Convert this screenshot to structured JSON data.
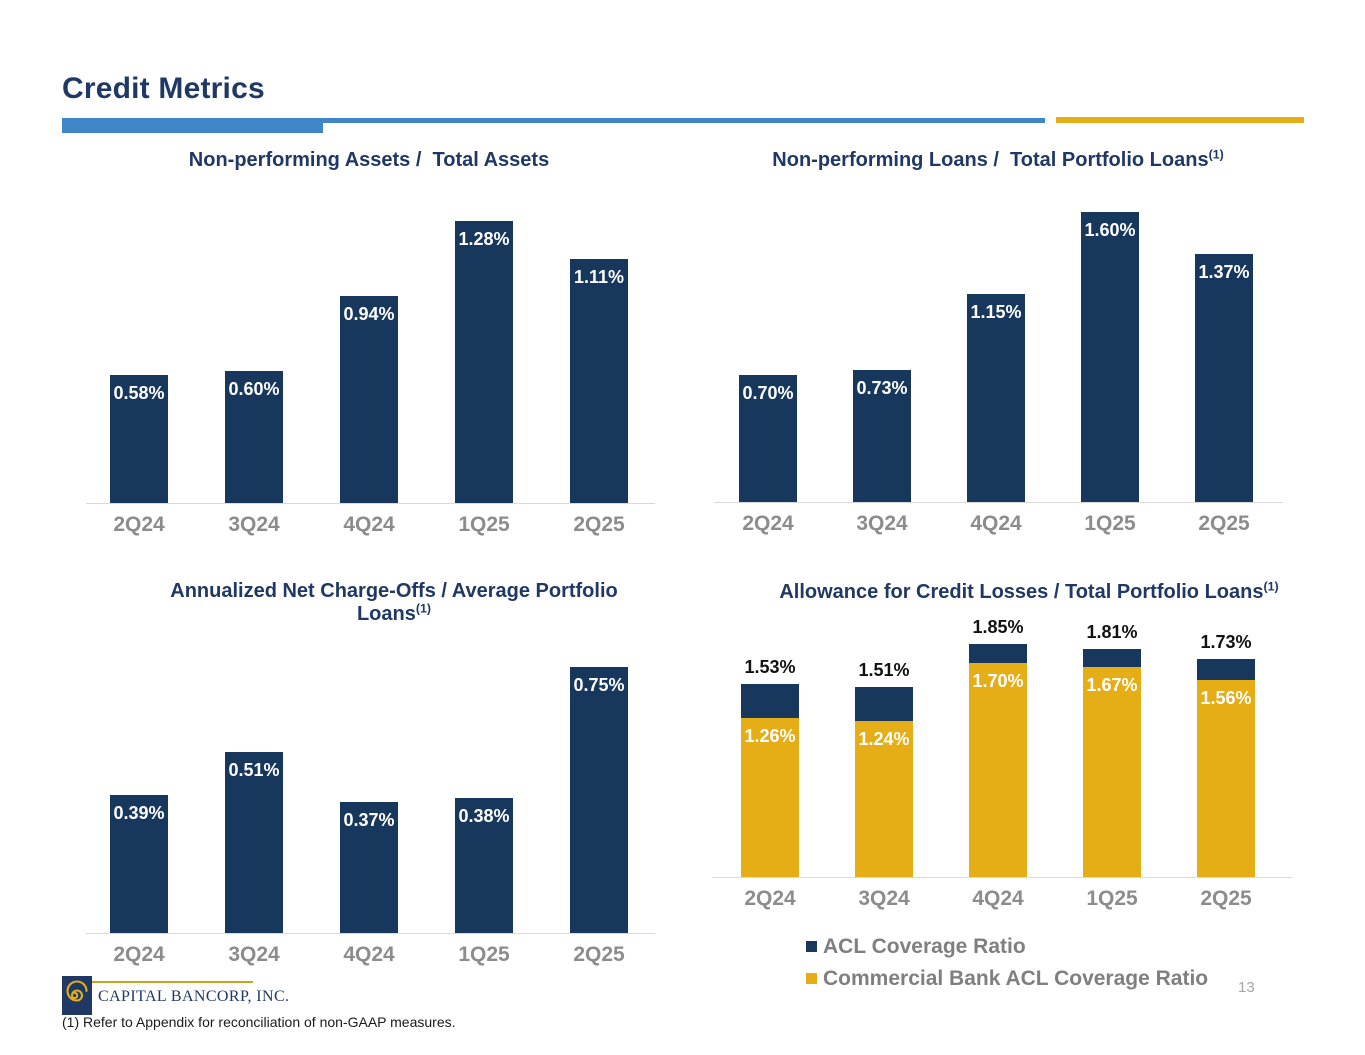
{
  "header": {
    "title": "Credit Metrics"
  },
  "colors": {
    "navy": "#17375C",
    "gold": "#E5AD16",
    "accent_blue": "#3E86C7",
    "title_navy": "#1F3864",
    "category_gray": "#8C8C8C",
    "legend_gray": "#7F7F7F",
    "axis_gray": "#D9D9D9"
  },
  "chart_data": [
    {
      "type": "bar",
      "title": "Non-performing Assets /  Total Assets",
      "title_sup": "",
      "categories": [
        "2Q24",
        "3Q24",
        "4Q24",
        "1Q25",
        "2Q25"
      ],
      "values": [
        0.58,
        0.6,
        0.94,
        1.28,
        1.11
      ],
      "value_labels": [
        "0.58%",
        "0.60%",
        "0.94%",
        "1.28%",
        "1.11%"
      ],
      "unit": "%",
      "grid": false,
      "legend_position": "none"
    },
    {
      "type": "bar",
      "title": "Non-performing Loans /  Total Portfolio Loans",
      "title_sup": "(1)",
      "categories": [
        "2Q24",
        "3Q24",
        "4Q24",
        "1Q25",
        "2Q25"
      ],
      "values": [
        0.7,
        0.73,
        1.15,
        1.6,
        1.37
      ],
      "value_labels": [
        "0.70%",
        "0.73%",
        "1.15%",
        "1.60%",
        "1.37%"
      ],
      "unit": "%",
      "grid": false,
      "legend_position": "none"
    },
    {
      "type": "bar",
      "title": "Annualized Net Charge-Offs / Average Portfolio\nLoans",
      "title_sup": "(1)",
      "categories": [
        "2Q24",
        "3Q24",
        "4Q24",
        "1Q25",
        "2Q25"
      ],
      "values": [
        0.39,
        0.51,
        0.37,
        0.38,
        0.75
      ],
      "value_labels": [
        "0.39%",
        "0.51%",
        "0.37%",
        "0.38%",
        "0.75%"
      ],
      "unit": "%",
      "grid": false,
      "legend_position": "none"
    },
    {
      "type": "stacked-bar",
      "title": "Allowance for Credit Losses / Total Portfolio Loans",
      "title_sup": "(1)",
      "categories": [
        "2Q24",
        "3Q24",
        "4Q24",
        "1Q25",
        "2Q25"
      ],
      "series": [
        {
          "name": "ACL Coverage Ratio",
          "color_key": "navy",
          "values": [
            1.53,
            1.51,
            1.85,
            1.81,
            1.73
          ],
          "value_labels": [
            "1.53%",
            "1.51%",
            "1.85%",
            "1.81%",
            "1.73%"
          ],
          "label_position": "above"
        },
        {
          "name": "Commercial Bank ACL Coverage Ratio",
          "color_key": "gold",
          "values": [
            1.26,
            1.24,
            1.7,
            1.67,
            1.56
          ],
          "value_labels": [
            "1.26%",
            "1.24%",
            "1.70%",
            "1.67%",
            "1.56%"
          ],
          "label_position": "inside"
        }
      ],
      "unit": "%",
      "grid": false,
      "legend_position": "bottom"
    }
  ],
  "footer": {
    "company": "CAPITAL BANCORP, INC.",
    "footnote": "(1) Refer to Appendix for reconciliation of non-GAAP measures.",
    "page_number": "13"
  }
}
